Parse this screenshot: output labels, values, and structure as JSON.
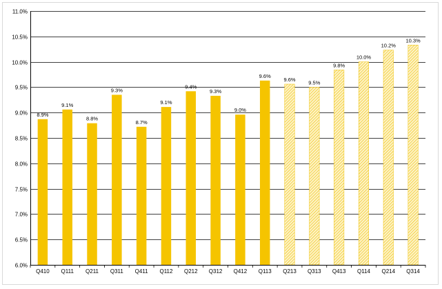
{
  "chart_data": {
    "type": "bar",
    "title": "",
    "xlabel": "",
    "ylabel": "",
    "categories": [
      "Q410",
      "Q111",
      "Q211",
      "Q311",
      "Q411",
      "Q112",
      "Q212",
      "Q312",
      "Q412",
      "Q113",
      "Q213",
      "Q313",
      "Q413",
      "Q114",
      "Q214",
      "Q314"
    ],
    "values": [
      8.87,
      9.06,
      8.79,
      9.35,
      8.72,
      9.11,
      9.42,
      9.33,
      8.96,
      9.63,
      9.56,
      9.5,
      9.84,
      10.0,
      10.23,
      10.33
    ],
    "value_labels": [
      "8.9%",
      "9.1%",
      "8.8%",
      "9.3%",
      "8.7%",
      "9.1%",
      "9.4%",
      "9.3%",
      "9.0%",
      "9.6%",
      "9.6%",
      "9.5%",
      "9.8%",
      "10.0%",
      "10.2%",
      "10.3%"
    ],
    "bar_style": [
      "solid",
      "solid",
      "solid",
      "solid",
      "solid",
      "solid",
      "solid",
      "solid",
      "solid",
      "solid",
      "hatched",
      "hatched",
      "hatched",
      "hatched",
      "hatched",
      "hatched"
    ],
    "ylim": [
      6.0,
      11.0
    ],
    "ytick_values": [
      6.0,
      6.5,
      7.0,
      7.5,
      8.0,
      8.5,
      9.0,
      9.5,
      10.0,
      10.5,
      11.0
    ],
    "ytick_labels": [
      "6.0%",
      "6.5%",
      "7.0%",
      "7.5%",
      "8.0%",
      "8.5%",
      "9.0%",
      "9.5%",
      "10.0%",
      "10.5%",
      "11.0%"
    ],
    "grid": true,
    "legend": "none",
    "colors": {
      "solid_bar": "#f5c400",
      "hatch_fill": "#fdf3c8",
      "hatch_line": "#f0c000",
      "grid": "#000000",
      "axis": "#000000"
    }
  }
}
